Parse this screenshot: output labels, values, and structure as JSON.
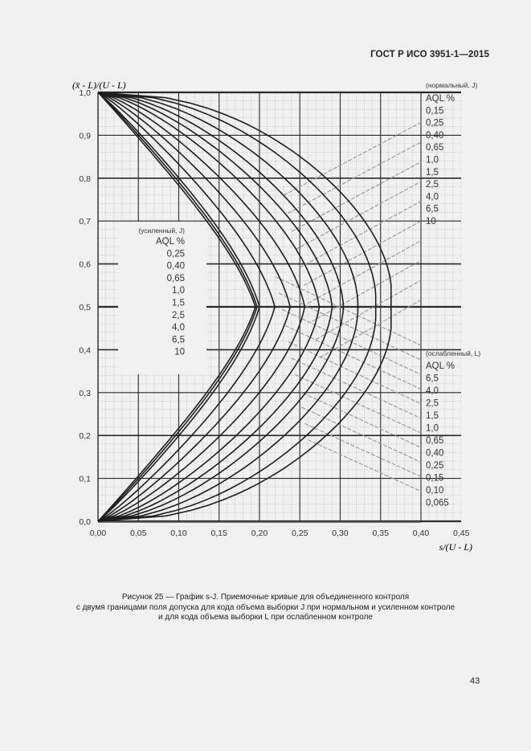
{
  "page": {
    "header": "ГОСТ Р ИСО 3951-1—2015",
    "page_number": "43",
    "caption": [
      "Рисунок 25 — График s-J. Приемочные кривые для объединенного контроля",
      "с двумя границами поля допуска для кода объема выборки J при нормальном и усиленном контроле",
      "и для кода объема выборки L при ослабленном контроле"
    ]
  },
  "chart_data": {
    "type": "line",
    "title": "График s-J. Приемочные кривые для объединенного контроля",
    "xlabel": "s/(U - L)",
    "ylabel": "(x̄ - L)/(U - L)",
    "xlim": [
      0.0,
      0.45
    ],
    "ylim": [
      0.0,
      1.0
    ],
    "grid": true,
    "x_ticks": [
      "0,00",
      "0,05",
      "0,10",
      "0,15",
      "0,20",
      "0,25",
      "0,30",
      "0,35",
      "0,40",
      "0,45"
    ],
    "y_ticks": [
      "0,0",
      "0,1",
      "0,2",
      "0,3",
      "0,4",
      "0,5",
      "0,6",
      "0,7",
      "0,8",
      "0,9",
      "1,0"
    ],
    "legend_groups": [
      {
        "title": "(нормальный, J)",
        "subtitle": "AQL %",
        "position": "right-top",
        "entries": [
          "0,15",
          "0,25",
          "0,40",
          "0,65",
          "1,0",
          "1,5",
          "2,5",
          "4,0",
          "6,5",
          "10"
        ]
      },
      {
        "title": "(усиленный, J)",
        "subtitle": "AQL %",
        "position": "inside-left",
        "entries": [
          "0,25",
          "0,40",
          "0,65",
          "1,0",
          "1,5",
          "2,5",
          "4,0",
          "6,5",
          "10"
        ]
      },
      {
        "title": "(ослабленный, L)",
        "subtitle": "AQL %",
        "position": "right-bottom",
        "entries": [
          "6,5",
          "4,0",
          "2,5",
          "1,5",
          "1,0",
          "0,65",
          "0,40",
          "0,25",
          "0,15",
          "0,10",
          "0,065"
        ]
      }
    ],
    "curves_note": "Each acceptance curve is symmetric about y=0.5, runs from (0,0) to (0,1) and reaches its maximum s at y=0.5",
    "series": [
      {
        "name": "curve-1",
        "s_max": 0.195,
        "shape": 0.98
      },
      {
        "name": "curve-2",
        "s_max": 0.197,
        "shape": 0.95
      },
      {
        "name": "curve-3",
        "s_max": 0.2,
        "shape": 0.92
      },
      {
        "name": "curve-4",
        "s_max": 0.219,
        "shape": 0.86
      },
      {
        "name": "curve-5",
        "s_max": 0.238,
        "shape": 0.8
      },
      {
        "name": "curve-6",
        "s_max": 0.256,
        "shape": 0.74
      },
      {
        "name": "curve-7",
        "s_max": 0.274,
        "shape": 0.68
      },
      {
        "name": "curve-8",
        "s_max": 0.29,
        "shape": 0.63
      },
      {
        "name": "curve-9",
        "s_max": 0.304,
        "shape": 0.58
      },
      {
        "name": "curve-10",
        "s_max": 0.322,
        "shape": 0.53
      },
      {
        "name": "curve-11",
        "s_max": 0.344,
        "shape": 0.48
      },
      {
        "name": "curve-12",
        "s_max": 0.363,
        "shape": 0.44
      }
    ]
  }
}
